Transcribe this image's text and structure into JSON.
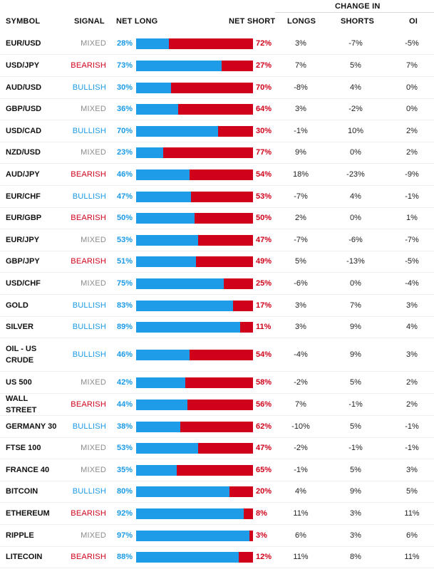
{
  "header": {
    "symbol": "SYMBOL",
    "signal": "SIGNAL",
    "net_long": "NET LONG",
    "net_short": "NET SHORT",
    "change_in": "CHANGE IN",
    "longs": "LONGS",
    "shorts": "SHORTS",
    "oi": "OI"
  },
  "colors": {
    "bullish": "#1a9ae6",
    "bearish": "#d0021b",
    "mixed": "#8c8c8c"
  },
  "rows": [
    {
      "symbol": "EUR/USD",
      "signal": "MIXED",
      "net_long": "28%",
      "net_short": "72%",
      "long_fraction": 0.28,
      "longs": "3%",
      "shorts": "-7%",
      "oi": "-5%"
    },
    {
      "symbol": "USD/JPY",
      "signal": "BEARISH",
      "net_long": "73%",
      "net_short": "27%",
      "long_fraction": 0.73,
      "longs": "7%",
      "shorts": "5%",
      "oi": "7%"
    },
    {
      "symbol": "AUD/USD",
      "signal": "BULLISH",
      "net_long": "30%",
      "net_short": "70%",
      "long_fraction": 0.3,
      "longs": "-8%",
      "shorts": "4%",
      "oi": "0%"
    },
    {
      "symbol": "GBP/USD",
      "signal": "MIXED",
      "net_long": "36%",
      "net_short": "64%",
      "long_fraction": 0.36,
      "longs": "3%",
      "shorts": "-2%",
      "oi": "0%"
    },
    {
      "symbol": "USD/CAD",
      "signal": "BULLISH",
      "net_long": "70%",
      "net_short": "30%",
      "long_fraction": 0.7,
      "longs": "-1%",
      "shorts": "10%",
      "oi": "2%"
    },
    {
      "symbol": "NZD/USD",
      "signal": "MIXED",
      "net_long": "23%",
      "net_short": "77%",
      "long_fraction": 0.23,
      "longs": "9%",
      "shorts": "0%",
      "oi": "2%"
    },
    {
      "symbol": "AUD/JPY",
      "signal": "BEARISH",
      "net_long": "46%",
      "net_short": "54%",
      "long_fraction": 0.46,
      "longs": "18%",
      "shorts": "-23%",
      "oi": "-9%"
    },
    {
      "symbol": "EUR/CHF",
      "signal": "BULLISH",
      "net_long": "47%",
      "net_short": "53%",
      "long_fraction": 0.47,
      "longs": "-7%",
      "shorts": "4%",
      "oi": "-1%"
    },
    {
      "symbol": "EUR/GBP",
      "signal": "BEARISH",
      "net_long": "50%",
      "net_short": "50%",
      "long_fraction": 0.5,
      "longs": "2%",
      "shorts": "0%",
      "oi": "1%"
    },
    {
      "symbol": "EUR/JPY",
      "signal": "MIXED",
      "net_long": "53%",
      "net_short": "47%",
      "long_fraction": 0.53,
      "longs": "-7%",
      "shorts": "-6%",
      "oi": "-7%"
    },
    {
      "symbol": "GBP/JPY",
      "signal": "BEARISH",
      "net_long": "51%",
      "net_short": "49%",
      "long_fraction": 0.51,
      "longs": "5%",
      "shorts": "-13%",
      "oi": "-5%"
    },
    {
      "symbol": "USD/CHF",
      "signal": "MIXED",
      "net_long": "75%",
      "net_short": "25%",
      "long_fraction": 0.75,
      "longs": "-6%",
      "shorts": "0%",
      "oi": "-4%"
    },
    {
      "symbol": "GOLD",
      "signal": "BULLISH",
      "net_long": "83%",
      "net_short": "17%",
      "long_fraction": 0.83,
      "longs": "3%",
      "shorts": "7%",
      "oi": "3%"
    },
    {
      "symbol": "SILVER",
      "signal": "BULLISH",
      "net_long": "89%",
      "net_short": "11%",
      "long_fraction": 0.89,
      "longs": "3%",
      "shorts": "9%",
      "oi": "4%"
    },
    {
      "symbol": "OIL - US CRUDE",
      "signal": "BULLISH",
      "net_long": "46%",
      "net_short": "54%",
      "long_fraction": 0.46,
      "longs": "-4%",
      "shorts": "9%",
      "oi": "3%"
    },
    {
      "symbol": "US 500",
      "signal": "MIXED",
      "net_long": "42%",
      "net_short": "58%",
      "long_fraction": 0.42,
      "longs": "-2%",
      "shorts": "5%",
      "oi": "2%"
    },
    {
      "symbol": "WALL STREET",
      "signal": "BEARISH",
      "net_long": "44%",
      "net_short": "56%",
      "long_fraction": 0.44,
      "longs": "7%",
      "shorts": "-1%",
      "oi": "2%"
    },
    {
      "symbol": "GERMANY 30",
      "signal": "BULLISH",
      "net_long": "38%",
      "net_short": "62%",
      "long_fraction": 0.38,
      "longs": "-10%",
      "shorts": "5%",
      "oi": "-1%"
    },
    {
      "symbol": "FTSE 100",
      "signal": "MIXED",
      "net_long": "53%",
      "net_short": "47%",
      "long_fraction": 0.53,
      "longs": "-2%",
      "shorts": "-1%",
      "oi": "-1%"
    },
    {
      "symbol": "FRANCE 40",
      "signal": "MIXED",
      "net_long": "35%",
      "net_short": "65%",
      "long_fraction": 0.35,
      "longs": "-1%",
      "shorts": "5%",
      "oi": "3%"
    },
    {
      "symbol": "BITCOIN",
      "signal": "BULLISH",
      "net_long": "80%",
      "net_short": "20%",
      "long_fraction": 0.8,
      "longs": "4%",
      "shorts": "9%",
      "oi": "5%"
    },
    {
      "symbol": "ETHEREUM",
      "signal": "BEARISH",
      "net_long": "92%",
      "net_short": "8%",
      "long_fraction": 0.92,
      "longs": "11%",
      "shorts": "3%",
      "oi": "11%"
    },
    {
      "symbol": "RIPPLE",
      "signal": "MIXED",
      "net_long": "97%",
      "net_short": "3%",
      "long_fraction": 0.97,
      "longs": "6%",
      "shorts": "3%",
      "oi": "6%"
    },
    {
      "symbol": "LITECOIN",
      "signal": "BEARISH",
      "net_long": "88%",
      "net_short": "12%",
      "long_fraction": 0.88,
      "longs": "11%",
      "shorts": "8%",
      "oi": "11%"
    }
  ]
}
